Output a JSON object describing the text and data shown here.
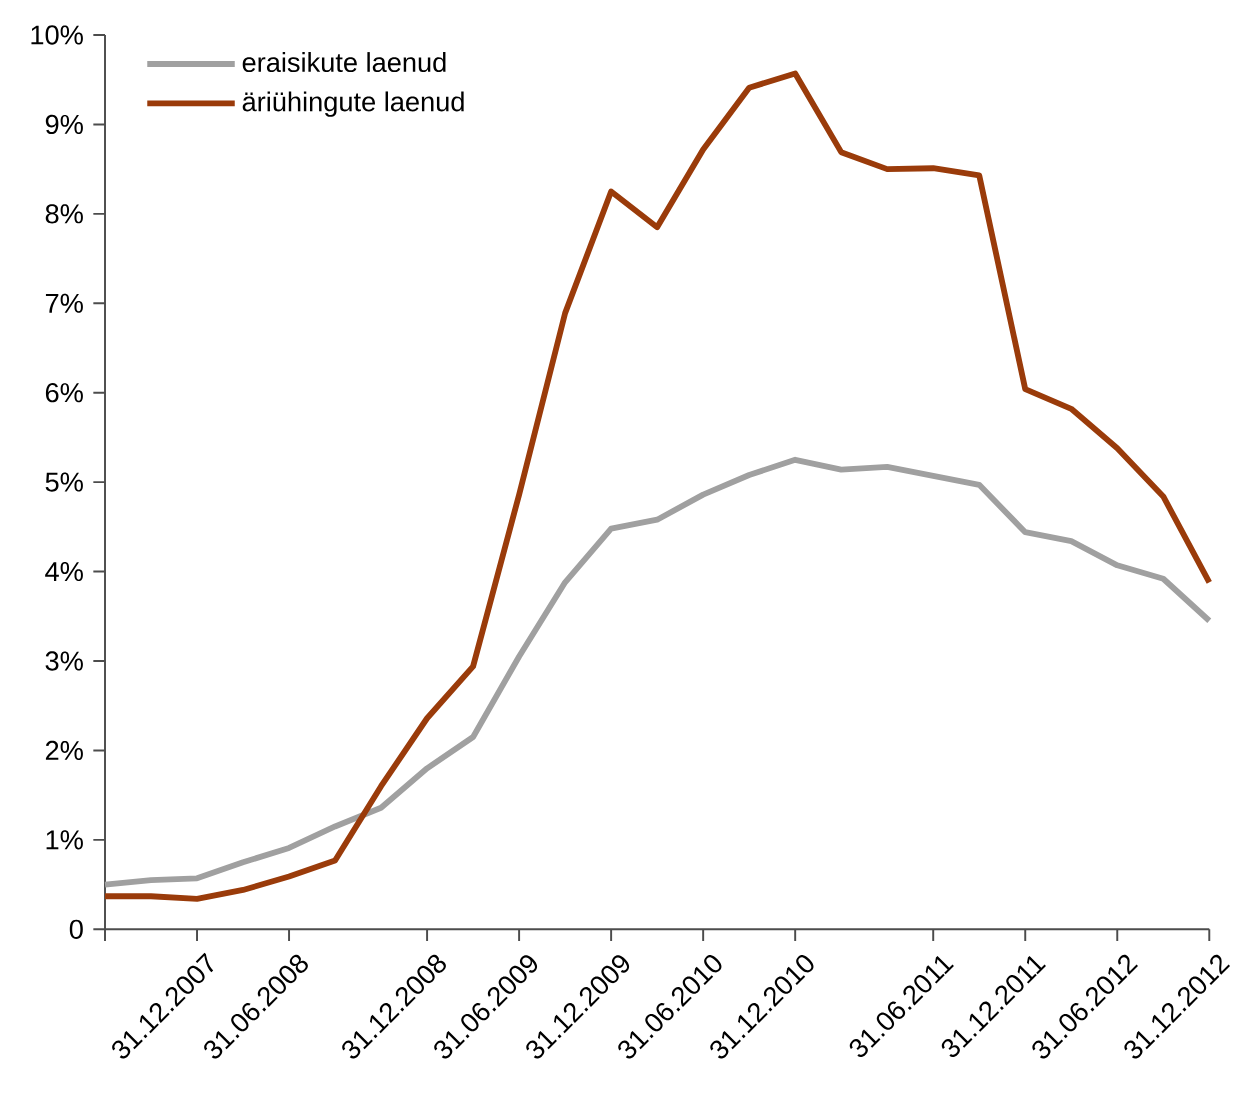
{
  "chart_data": {
    "type": "line",
    "categories": [
      null,
      null,
      "31.12.2007",
      null,
      "31.06.2008",
      null,
      null,
      "31.12.2008",
      null,
      "31.06.2009",
      null,
      "31.12.2009",
      null,
      "31.06.2010",
      null,
      "31.12.2010",
      null,
      null,
      "31.06.2011",
      null,
      "31.12.2011",
      null,
      "31.06.2012",
      null,
      "31.12.2012"
    ],
    "series": [
      {
        "name": "eraisikute laenud",
        "color": "#a0a0a0",
        "values": [
          0.5,
          0.55,
          0.57,
          0.75,
          0.91,
          1.15,
          1.36,
          1.8,
          2.15,
          3.05,
          3.88,
          4.48,
          4.58,
          4.86,
          5.08,
          5.25,
          5.14,
          5.17,
          5.07,
          4.97,
          4.44,
          4.34,
          4.07,
          3.92,
          3.45
        ]
      },
      {
        "name": "äriühingute laenud",
        "color": "#9a3b0a",
        "values": [
          0.37,
          0.37,
          0.34,
          0.44,
          0.59,
          0.77,
          1.6,
          2.36,
          2.94,
          4.86,
          6.89,
          8.25,
          7.85,
          8.72,
          9.41,
          9.57,
          8.69,
          8.5,
          8.51,
          8.43,
          6.04,
          5.82,
          5.38,
          4.84,
          3.88
        ]
      }
    ],
    "ylim": [
      0,
      10
    ],
    "yticks": [
      0,
      {
        "value": 1,
        "label": "1%"
      },
      {
        "value": 2,
        "label": "2%"
      },
      {
        "value": 3,
        "label": "3%"
      },
      {
        "value": 4,
        "label": "4%"
      },
      {
        "value": 5,
        "label": "5%"
      },
      {
        "value": 6,
        "label": "6%"
      },
      {
        "value": 7,
        "label": "7%"
      },
      {
        "value": 8,
        "label": "8%"
      },
      {
        "value": 9,
        "label": "9%"
      },
      {
        "value": 10,
        "label": "10%"
      }
    ],
    "grid": false,
    "legend": "top left",
    "marker": "none",
    "line_style": "solid"
  }
}
